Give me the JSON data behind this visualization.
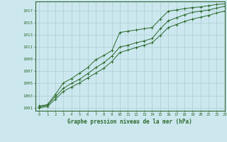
{
  "xlabel": "Graphe pression niveau de la mer (hPa)",
  "ylim": [
    1000.5,
    1018.5
  ],
  "xlim": [
    -0.5,
    23
  ],
  "yticks": [
    1001,
    1003,
    1005,
    1007,
    1009,
    1011,
    1013,
    1015,
    1017
  ],
  "xticks": [
    0,
    1,
    2,
    3,
    4,
    5,
    6,
    7,
    8,
    9,
    10,
    11,
    12,
    13,
    14,
    15,
    16,
    17,
    18,
    19,
    20,
    21,
    22,
    23
  ],
  "bg_color": "#cce8ee",
  "grid_color": "#aaccd4",
  "line_color": "#2d6a2d",
  "border_color": "#336633",
  "series1": [
    1001.3,
    1001.5,
    1003.2,
    1005.1,
    1005.8,
    1006.7,
    1007.6,
    1008.9,
    1009.6,
    1010.4,
    1013.4,
    1013.6,
    1013.8,
    1014.0,
    1014.2,
    1015.6,
    1016.9,
    1017.1,
    1017.3,
    1017.5,
    1017.6,
    1017.8,
    1018.0,
    1018.1
  ],
  "series2": [
    1001.1,
    1001.4,
    1002.8,
    1004.2,
    1005.0,
    1005.7,
    1006.6,
    1007.6,
    1008.4,
    1009.5,
    1011.0,
    1011.3,
    1011.7,
    1012.0,
    1012.4,
    1014.0,
    1015.3,
    1015.8,
    1016.3,
    1016.7,
    1016.9,
    1017.1,
    1017.4,
    1017.7
  ],
  "series3": [
    1001.0,
    1001.2,
    1002.4,
    1003.7,
    1004.4,
    1005.1,
    1005.9,
    1006.7,
    1007.5,
    1008.6,
    1010.1,
    1010.5,
    1010.9,
    1011.3,
    1011.7,
    1012.9,
    1014.2,
    1014.7,
    1015.2,
    1015.6,
    1015.9,
    1016.2,
    1016.6,
    1016.9
  ]
}
